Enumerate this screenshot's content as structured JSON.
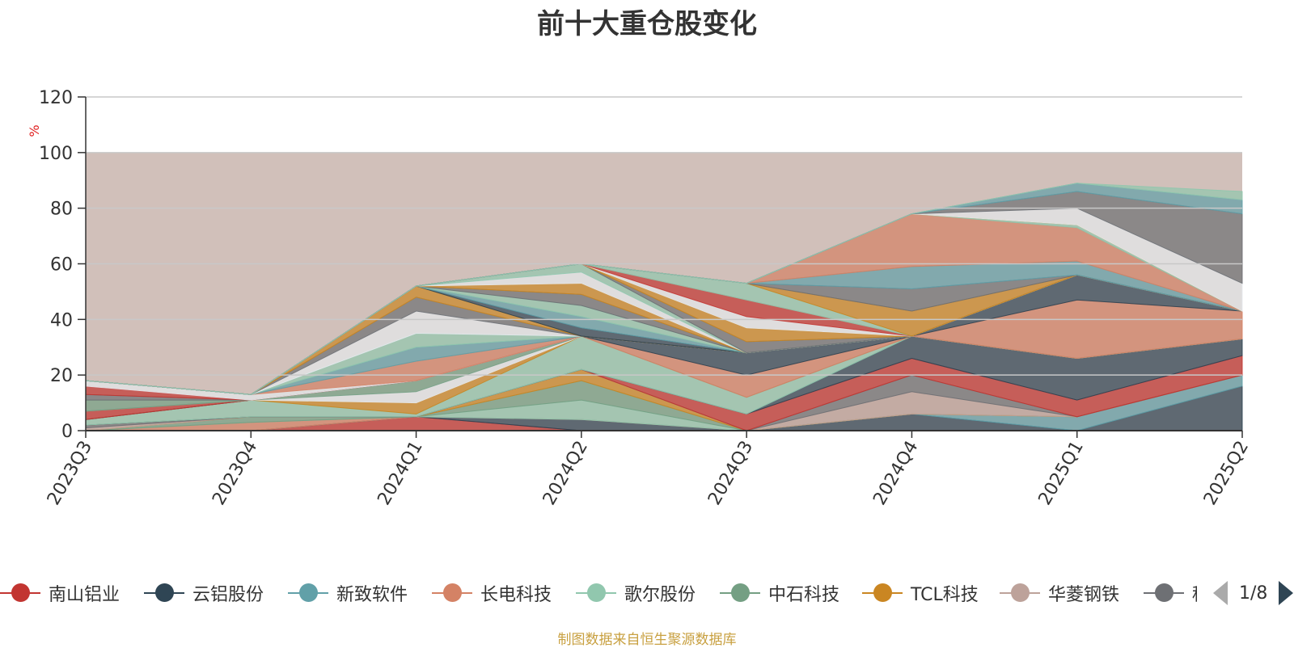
{
  "title": "前十大重仓股变化",
  "source": "制图数据来自恒生聚源数据库",
  "pager": {
    "text": "1/8"
  },
  "chart_data": {
    "type": "area",
    "ylabel": "%",
    "ylim": [
      0,
      120
    ],
    "yticks": [
      0,
      20,
      40,
      60,
      80,
      100,
      120
    ],
    "mark_area": [
      0,
      100
    ],
    "categories": [
      "2023Q3",
      "2023Q4",
      "2024Q1",
      "2024Q2",
      "2024Q3",
      "2024Q4",
      "2025Q1",
      "2025Q2"
    ],
    "legend_visible": [
      "南山铝业",
      "云铝股份",
      "新致软件",
      "长电科技",
      "歌尔股份",
      "中石科技",
      "TCL科技",
      "华菱钢铁",
      "种"
    ],
    "series": [
      {
        "name": "南山铝业",
        "color": "#c23531",
        "values": [
          0,
          0,
          5,
          0,
          0,
          0,
          0,
          0
        ]
      },
      {
        "name": "云铝股份",
        "color": "#2f4554",
        "values": [
          0,
          0,
          0,
          4,
          0,
          6,
          0,
          16
        ]
      },
      {
        "name": "新致软件",
        "color": "#61a0a8",
        "values": [
          0,
          0,
          0,
          0,
          0,
          0,
          5,
          4
        ]
      },
      {
        "name": "长电科技",
        "color": "#d48265",
        "values": [
          0,
          3,
          0,
          0,
          0,
          0,
          0,
          0
        ]
      },
      {
        "name": "歌尔股份",
        "color": "#91c7ae",
        "values": [
          0,
          0,
          0,
          7,
          0,
          0,
          0,
          0
        ]
      },
      {
        "name": "中石科技",
        "color": "#749f83",
        "values": [
          0,
          2,
          0,
          7,
          0,
          0,
          0,
          0
        ]
      },
      {
        "name": "TCL科技",
        "color": "#ca8622",
        "values": [
          0,
          0,
          0,
          4,
          0,
          0,
          0,
          0
        ]
      },
      {
        "name": "华菱钢铁",
        "color": "#bda29a",
        "values": [
          1,
          0,
          0,
          0,
          0,
          8,
          0,
          0
        ]
      },
      {
        "name": "种",
        "color": "#6e7074",
        "values": [
          1,
          0,
          0,
          0,
          0,
          6,
          0,
          0
        ]
      },
      {
        "color": "#c23531",
        "values": [
          0,
          0,
          0,
          0,
          6,
          6,
          6,
          7
        ]
      },
      {
        "color": "#2f4554",
        "values": [
          0,
          0,
          0,
          0,
          0,
          8,
          15,
          6
        ]
      },
      {
        "color": "#91c7ae",
        "values": [
          2,
          6,
          1,
          12,
          6,
          0,
          0,
          0
        ]
      },
      {
        "color": "#ca8622",
        "values": [
          0,
          0,
          4,
          0,
          0,
          0,
          0,
          0
        ]
      },
      {
        "color": "#e6e9ed",
        "values": [
          0,
          0,
          4,
          0,
          0,
          0,
          0,
          0
        ]
      },
      {
        "color": "#749f83",
        "values": [
          0,
          0,
          4,
          0,
          0,
          0,
          0,
          0
        ]
      },
      {
        "color": "#d48265",
        "values": [
          0,
          0,
          0,
          0,
          8,
          0,
          21,
          10
        ]
      },
      {
        "color": "#2f4554",
        "values": [
          0,
          0,
          0,
          0,
          8,
          0,
          9,
          0
        ]
      },
      {
        "color": "#c23531",
        "values": [
          3,
          0,
          0,
          0,
          0,
          0,
          0,
          0
        ]
      },
      {
        "color": "#91c7ae",
        "values": [
          0,
          0,
          0,
          0,
          0,
          0,
          0,
          0
        ]
      },
      {
        "color": "#749f83",
        "values": [
          4,
          0,
          0,
          0,
          0,
          0,
          0,
          0
        ]
      },
      {
        "color": "#6e7074",
        "values": [
          2,
          0,
          0,
          0,
          0,
          0,
          0,
          0
        ]
      },
      {
        "color": "#c23531",
        "values": [
          3,
          0,
          0,
          0,
          0,
          0,
          0,
          0
        ]
      },
      {
        "color": "#e6e9ed",
        "values": [
          2,
          2,
          0,
          0,
          0,
          0,
          0,
          0
        ]
      },
      {
        "color": "#d48265",
        "values": [
          0,
          0,
          7,
          0,
          0,
          0,
          0,
          0
        ]
      },
      {
        "color": "#61a0a8",
        "values": [
          0,
          0,
          5,
          0,
          0,
          0,
          0,
          0
        ]
      },
      {
        "color": "#91c7ae",
        "values": [
          0,
          0,
          5,
          0,
          0,
          0,
          0,
          0
        ]
      },
      {
        "color": "#e6e9ed",
        "values": [
          0,
          0,
          8,
          0,
          0,
          0,
          0,
          0
        ]
      },
      {
        "color": "#6e7074",
        "values": [
          0,
          0,
          5,
          0,
          0,
          0,
          0,
          0
        ]
      },
      {
        "color": "#ca8622",
        "values": [
          0,
          0,
          4,
          0,
          0,
          0,
          0,
          0
        ]
      },
      {
        "color": "#2f4554",
        "values": [
          0,
          0,
          0,
          3,
          0,
          0,
          0,
          0
        ]
      },
      {
        "color": "#61a0a8",
        "values": [
          0,
          0,
          0,
          4,
          0,
          0,
          0,
          0
        ]
      },
      {
        "color": "#91c7ae",
        "values": [
          0,
          0,
          0,
          4,
          0,
          0,
          0,
          0
        ]
      },
      {
        "color": "#6e7074",
        "values": [
          0,
          0,
          0,
          4,
          0,
          0,
          0,
          0
        ]
      },
      {
        "color": "#ca8622",
        "values": [
          0,
          0,
          0,
          4,
          0,
          0,
          0,
          0
        ]
      },
      {
        "color": "#e6e9ed",
        "values": [
          0,
          0,
          0,
          4,
          0,
          0,
          0,
          0
        ]
      },
      {
        "color": "#91c7ae",
        "values": [
          0,
          0,
          0,
          3,
          0,
          0,
          0,
          0
        ]
      },
      {
        "color": "#6e7074",
        "values": [
          0,
          0,
          0,
          0,
          4,
          0,
          0,
          0
        ]
      },
      {
        "color": "#ca8622",
        "values": [
          0,
          0,
          0,
          0,
          5,
          0,
          0,
          0
        ]
      },
      {
        "color": "#e6e9ed",
        "values": [
          0,
          0,
          0,
          0,
          4,
          0,
          0,
          0
        ]
      },
      {
        "color": "#c23531",
        "values": [
          0,
          0,
          0,
          0,
          6,
          0,
          0,
          0
        ]
      },
      {
        "color": "#91c7ae",
        "values": [
          0,
          0,
          0,
          0,
          6,
          0,
          0,
          0
        ]
      },
      {
        "color": "#ca8622",
        "values": [
          0,
          0,
          0,
          0,
          0,
          9,
          0,
          0
        ]
      },
      {
        "color": "#6e7074",
        "values": [
          0,
          0,
          0,
          0,
          0,
          8,
          0,
          0
        ]
      },
      {
        "color": "#61a0a8",
        "values": [
          0,
          0,
          0,
          0,
          0,
          8,
          5,
          0
        ]
      },
      {
        "color": "#d48265",
        "values": [
          0,
          0,
          0,
          0,
          0,
          19,
          12,
          0
        ]
      },
      {
        "color": "#91c7ae",
        "values": [
          0,
          0,
          0,
          0,
          0,
          0,
          1,
          0
        ]
      },
      {
        "color": "#ca8622",
        "values": [
          0,
          0,
          0,
          0,
          0,
          0,
          0,
          0
        ]
      },
      {
        "color": "#e6e9ed",
        "values": [
          0,
          0,
          0,
          0,
          0,
          0,
          6,
          10
        ]
      },
      {
        "color": "#6e7074",
        "values": [
          0,
          0,
          0,
          0,
          0,
          0,
          6,
          25
        ]
      },
      {
        "color": "#61a0a8",
        "values": [
          0,
          0,
          0,
          0,
          0,
          0,
          3,
          5
        ]
      },
      {
        "color": "#91c7ae",
        "values": [
          0,
          0,
          0,
          0,
          0,
          0,
          0,
          3
        ]
      }
    ]
  }
}
